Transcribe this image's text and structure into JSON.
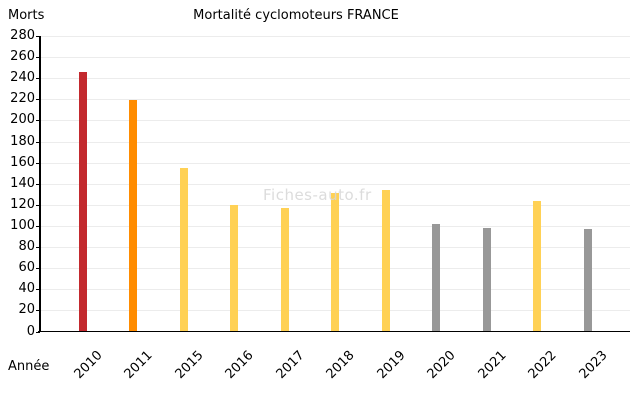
{
  "title": "Mortalité cyclomoteurs FRANCE",
  "watermark": "Fiches-auto.fr",
  "chart_data": {
    "type": "bar",
    "title": "Mortalité cyclomoteurs FRANCE",
    "xlabel": "Année",
    "ylabel": "Morts",
    "categories": [
      "2010",
      "2011",
      "2015",
      "2016",
      "2017",
      "2018",
      "2019",
      "2020",
      "2021",
      "2022",
      "2023"
    ],
    "values": [
      246,
      219,
      155,
      120,
      117,
      131,
      134,
      102,
      98,
      124,
      97
    ],
    "bar_colors": [
      "#c3292e",
      "#ff8c00",
      "#ffd155",
      "#ffd155",
      "#ffd155",
      "#ffd155",
      "#ffd155",
      "#989898",
      "#989898",
      "#ffd155",
      "#989898"
    ],
    "ylim": [
      0,
      280
    ],
    "ytick_step": 20,
    "yticks": [
      0,
      20,
      40,
      60,
      80,
      100,
      120,
      140,
      160,
      180,
      200,
      220,
      240,
      260,
      280
    ],
    "grid": true,
    "legend": "none",
    "gridline_color": "#ececec",
    "axis_color": "#000000",
    "watermark": "Fiches-auto.fr"
  }
}
